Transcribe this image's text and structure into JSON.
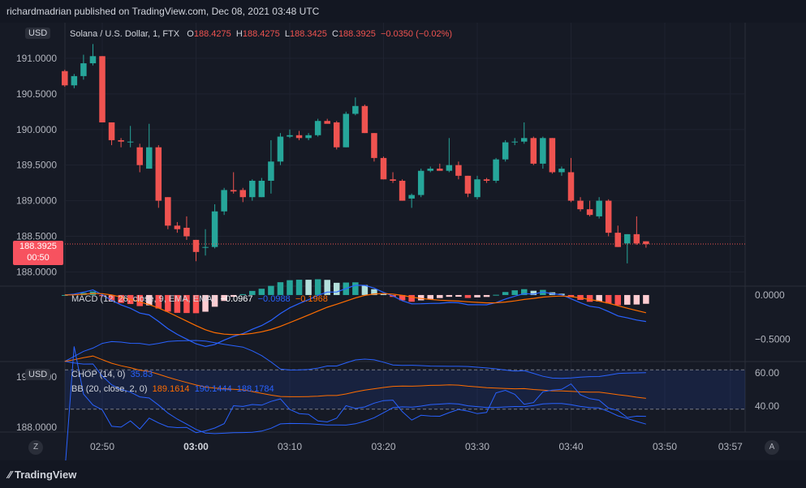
{
  "header": {
    "published": "richardmadrian published on TradingView.com, Dec 08, 2021 03:48 UTC"
  },
  "main": {
    "currency": "USD",
    "symbol": "Solana / U.S. Dollar, 1, FTX",
    "o_label": "O",
    "o_value": "188.4275",
    "h_label": "H",
    "h_value": "188.4275",
    "l_label": "L",
    "l_value": "188.3425",
    "c_label": "C",
    "c_value": "188.3925",
    "change": "−0.0350 (−0.02%)",
    "last_price": "188.3925",
    "countdown": "00:50"
  },
  "macd": {
    "label": "MACD (12, 26, close, 9, EMA, EMA)",
    "value1": "−0.0967",
    "value2": "−0.0988",
    "value3": "−0.1968"
  },
  "chop": {
    "currency": "USD",
    "label": "CHOP (14, 0)",
    "value": "35.83"
  },
  "bb": {
    "label": "BB (20, close, 2, 0)",
    "basis": "189.1614",
    "upper": "190.1444",
    "lower": "188.1784"
  },
  "x_axis": {
    "nav_left": "Z",
    "nav_right": "A"
  },
  "footer": {
    "brand": "TradingView"
  },
  "colors": {
    "up": "#26a69a",
    "down": "#ef5350",
    "macd_line": "#2962ff",
    "signal_line": "#ff6d00",
    "chop_line": "#2962ff",
    "bb_basis": "#ff6d00",
    "bb_band": "#2962ff",
    "background": "#131722"
  },
  "chart_data": [
    {
      "type": "candlestick",
      "title": "Solana / U.S. Dollar, 1, FTX",
      "x_ticks": [
        "02:50",
        "03:00",
        "03:10",
        "03:20",
        "03:30",
        "03:40",
        "03:50",
        "03:57"
      ],
      "y_ticks": [
        "191.0000",
        "190.5000",
        "190.0000",
        "189.5000",
        "189.0000",
        "188.5000",
        "188.0000"
      ],
      "ylim": [
        187.8,
        191.5
      ],
      "last_price": 188.3925,
      "candles": [
        {
          "t": "02:46",
          "o": 190.82,
          "h": 190.84,
          "l": 190.6,
          "c": 190.62
        },
        {
          "t": "02:47",
          "o": 190.62,
          "h": 190.78,
          "l": 190.58,
          "c": 190.75
        },
        {
          "t": "02:48",
          "o": 190.75,
          "h": 191.05,
          "l": 190.7,
          "c": 190.93
        },
        {
          "t": "02:49",
          "o": 190.93,
          "h": 191.2,
          "l": 190.9,
          "c": 191.03
        },
        {
          "t": "02:50",
          "o": 191.03,
          "h": 191.03,
          "l": 190.1,
          "c": 190.1
        },
        {
          "t": "02:51",
          "o": 190.1,
          "h": 190.1,
          "l": 189.78,
          "c": 189.85
        },
        {
          "t": "02:52",
          "o": 189.85,
          "h": 189.88,
          "l": 189.75,
          "c": 189.83
        },
        {
          "t": "02:53",
          "o": 189.83,
          "h": 190.05,
          "l": 189.75,
          "c": 189.83
        },
        {
          "t": "02:54",
          "o": 189.75,
          "h": 189.8,
          "l": 189.4,
          "c": 189.5
        },
        {
          "t": "02:55",
          "o": 189.45,
          "h": 190.08,
          "l": 189.45,
          "c": 189.75
        },
        {
          "t": "02:56",
          "o": 189.75,
          "h": 189.78,
          "l": 188.9,
          "c": 189.0
        },
        {
          "t": "02:57",
          "o": 189.05,
          "h": 189.05,
          "l": 188.6,
          "c": 188.65
        },
        {
          "t": "02:58",
          "o": 188.65,
          "h": 188.7,
          "l": 188.55,
          "c": 188.6
        },
        {
          "t": "02:59",
          "o": 188.62,
          "h": 188.78,
          "l": 188.45,
          "c": 188.5
        },
        {
          "t": "03:00",
          "o": 188.45,
          "h": 188.45,
          "l": 188.15,
          "c": 188.28
        },
        {
          "t": "03:01",
          "o": 188.35,
          "h": 188.6,
          "l": 188.23,
          "c": 188.35
        },
        {
          "t": "03:02",
          "o": 188.35,
          "h": 188.95,
          "l": 188.33,
          "c": 188.85
        },
        {
          "t": "03:03",
          "o": 188.85,
          "h": 189.18,
          "l": 188.8,
          "c": 189.15
        },
        {
          "t": "03:04",
          "o": 189.15,
          "h": 189.4,
          "l": 189.1,
          "c": 189.13
        },
        {
          "t": "03:05",
          "o": 189.15,
          "h": 189.18,
          "l": 188.98,
          "c": 189.05
        },
        {
          "t": "03:06",
          "o": 189.05,
          "h": 189.3,
          "l": 189.0,
          "c": 189.28
        },
        {
          "t": "03:07",
          "o": 189.05,
          "h": 189.32,
          "l": 189.05,
          "c": 189.28
        },
        {
          "t": "03:08",
          "o": 189.28,
          "h": 189.85,
          "l": 189.1,
          "c": 189.55
        },
        {
          "t": "03:09",
          "o": 189.55,
          "h": 189.95,
          "l": 189.5,
          "c": 189.9
        },
        {
          "t": "03:10",
          "o": 189.9,
          "h": 190.0,
          "l": 189.88,
          "c": 189.92
        },
        {
          "t": "03:11",
          "o": 189.92,
          "h": 189.98,
          "l": 189.85,
          "c": 189.88
        },
        {
          "t": "03:12",
          "o": 189.88,
          "h": 189.95,
          "l": 189.85,
          "c": 189.92
        },
        {
          "t": "03:13",
          "o": 189.92,
          "h": 190.15,
          "l": 189.9,
          "c": 190.12
        },
        {
          "t": "03:14",
          "o": 190.12,
          "h": 190.15,
          "l": 190.1,
          "c": 190.08
        },
        {
          "t": "03:15",
          "o": 190.1,
          "h": 190.12,
          "l": 189.72,
          "c": 189.75
        },
        {
          "t": "03:16",
          "o": 189.75,
          "h": 190.25,
          "l": 189.75,
          "c": 190.22
        },
        {
          "t": "03:17",
          "o": 190.22,
          "h": 190.45,
          "l": 190.2,
          "c": 190.33
        },
        {
          "t": "03:18",
          "o": 190.33,
          "h": 190.35,
          "l": 189.95,
          "c": 189.95
        },
        {
          "t": "03:19",
          "o": 189.95,
          "h": 189.95,
          "l": 189.55,
          "c": 189.6
        },
        {
          "t": "03:20",
          "o": 189.6,
          "h": 189.62,
          "l": 189.3,
          "c": 189.3
        },
        {
          "t": "03:21",
          "o": 189.3,
          "h": 189.4,
          "l": 189.25,
          "c": 189.28
        },
        {
          "t": "03:22",
          "o": 189.28,
          "h": 189.3,
          "l": 189.0,
          "c": 189.0
        },
        {
          "t": "03:23",
          "o": 189.03,
          "h": 189.1,
          "l": 188.9,
          "c": 189.08
        },
        {
          "t": "03:24",
          "o": 189.08,
          "h": 189.45,
          "l": 189.05,
          "c": 189.42
        },
        {
          "t": "03:25",
          "o": 189.42,
          "h": 189.48,
          "l": 189.4,
          "c": 189.45
        },
        {
          "t": "03:26",
          "o": 189.45,
          "h": 189.52,
          "l": 189.43,
          "c": 189.42
        },
        {
          "t": "03:27",
          "o": 189.42,
          "h": 189.88,
          "l": 189.4,
          "c": 189.5
        },
        {
          "t": "03:28",
          "o": 189.5,
          "h": 189.55,
          "l": 189.3,
          "c": 189.35
        },
        {
          "t": "03:29",
          "o": 189.35,
          "h": 189.35,
          "l": 189.05,
          "c": 189.1
        },
        {
          "t": "03:30",
          "o": 189.05,
          "h": 189.35,
          "l": 189.02,
          "c": 189.3
        },
        {
          "t": "03:31",
          "o": 189.3,
          "h": 189.32,
          "l": 189.25,
          "c": 189.28
        },
        {
          "t": "03:32",
          "o": 189.28,
          "h": 189.6,
          "l": 189.25,
          "c": 189.58
        },
        {
          "t": "03:33",
          "o": 189.58,
          "h": 189.85,
          "l": 189.55,
          "c": 189.82
        },
        {
          "t": "03:34",
          "o": 189.82,
          "h": 189.88,
          "l": 189.78,
          "c": 189.83
        },
        {
          "t": "03:35",
          "o": 189.83,
          "h": 190.1,
          "l": 189.8,
          "c": 189.88
        },
        {
          "t": "03:36",
          "o": 189.88,
          "h": 189.9,
          "l": 189.5,
          "c": 189.52
        },
        {
          "t": "03:37",
          "o": 189.52,
          "h": 189.9,
          "l": 189.45,
          "c": 189.88
        },
        {
          "t": "03:38",
          "o": 189.88,
          "h": 189.88,
          "l": 189.38,
          "c": 189.4
        },
        {
          "t": "03:39",
          "o": 189.4,
          "h": 189.48,
          "l": 189.35,
          "c": 189.45
        },
        {
          "t": "03:40",
          "o": 189.4,
          "h": 189.6,
          "l": 188.98,
          "c": 189.0
        },
        {
          "t": "03:41",
          "o": 189.0,
          "h": 189.05,
          "l": 188.85,
          "c": 188.88
        },
        {
          "t": "03:42",
          "o": 188.88,
          "h": 189.0,
          "l": 188.78,
          "c": 188.8
        },
        {
          "t": "03:43",
          "o": 188.78,
          "h": 189.05,
          "l": 188.75,
          "c": 189.0
        },
        {
          "t": "03:44",
          "o": 189.0,
          "h": 189.02,
          "l": 188.5,
          "c": 188.55
        },
        {
          "t": "03:45",
          "o": 188.55,
          "h": 188.65,
          "l": 188.35,
          "c": 188.35
        },
        {
          "t": "03:46",
          "o": 188.4,
          "h": 188.53,
          "l": 188.12,
          "c": 188.53
        },
        {
          "t": "03:47",
          "o": 188.53,
          "h": 188.78,
          "l": 188.38,
          "c": 188.4
        },
        {
          "t": "03:48",
          "o": 188.43,
          "h": 188.43,
          "l": 188.34,
          "c": 188.39
        }
      ]
    },
    {
      "type": "bar",
      "title": "MACD (12, 26, close, 9, EMA, EMA)",
      "y_ticks": [
        "0.0000",
        "−0.5000"
      ],
      "ylim": [
        -0.75,
        0.1
      ]
    },
    {
      "type": "line",
      "title": "CHOP (14, 0) / BB (20, close, 2, 0)",
      "y_ticks_left": [
        "190.0000",
        "188.0000"
      ],
      "y_ticks_right": [
        "60.00",
        "40.00"
      ]
    }
  ]
}
